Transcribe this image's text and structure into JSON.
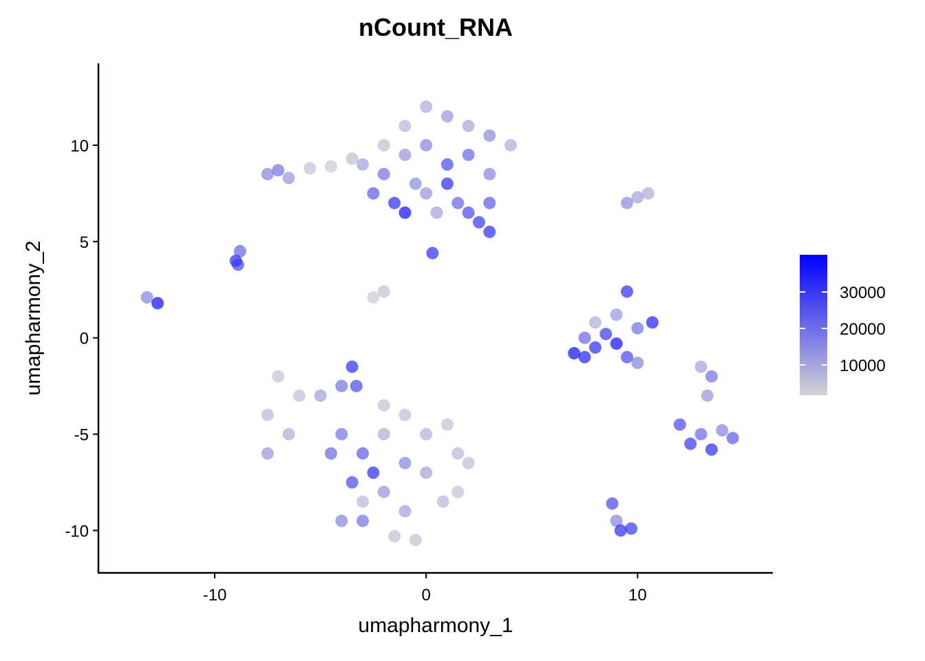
{
  "chart_data": {
    "type": "scatter",
    "title": "nCount_RNA",
    "x_label": "umapharmony_1",
    "y_label": "umapharmony_2",
    "xlim": [
      -15.5,
      16.4
    ],
    "ylim": [
      -12.2,
      14.25
    ],
    "xticks": [
      -10,
      0,
      10
    ],
    "yticks": [
      -10,
      -5,
      0,
      5,
      10
    ],
    "colorbar": {
      "lim": [
        1700,
        40200
      ],
      "ticks": [
        10000,
        20000,
        30000
      ],
      "low_color": "#d3d3d3",
      "high_color": "#0000ff"
    },
    "x": [
      -2,
      -1,
      0,
      1,
      2,
      3,
      4,
      -3,
      -2,
      -1,
      0,
      1,
      2,
      3,
      -2.5,
      -1.5,
      -1,
      0,
      1,
      1.5,
      2,
      2.5,
      3,
      3,
      0.5,
      -0.5,
      0.3,
      -7.5,
      -7,
      -6.5,
      -5.5,
      -4.5,
      -3.5,
      -9,
      -8.9,
      -8.8,
      -13.2,
      -12.7,
      -2.5,
      -2,
      10,
      9.5,
      10.5,
      7,
      7.5,
      8,
      8.5,
      9,
      8,
      9,
      9.5,
      10,
      10.7,
      9.5,
      10,
      7.5,
      13,
      13.5,
      13.3,
      12,
      13,
      14,
      14.5,
      13.5,
      12.5,
      8.8,
      9,
      9.2,
      9.7,
      -7,
      -7.5,
      -7.5,
      -6.5,
      -6,
      -5,
      -4,
      -3.5,
      -3.3,
      -4,
      -3,
      -2.5,
      -2,
      -1,
      0,
      1,
      1.5,
      2,
      1.5,
      0,
      -1,
      -2,
      -3,
      -4,
      -3,
      -1.5,
      -0.5,
      -1,
      -4.5,
      -3.5,
      0.8,
      -2
    ],
    "y": [
      10,
      11,
      12,
      11.5,
      11,
      10.5,
      10,
      9,
      8.5,
      9.5,
      10,
      9,
      9.5,
      8.5,
      7.5,
      7,
      6.5,
      7.5,
      8,
      7,
      6.5,
      6,
      5.5,
      7,
      6.5,
      8,
      4.4,
      8.5,
      8.7,
      8.3,
      8.8,
      8.9,
      9.3,
      4,
      3.8,
      4.5,
      2.1,
      1.8,
      2.1,
      2.4,
      7.3,
      7,
      7.5,
      -0.8,
      0,
      -0.5,
      0.2,
      -0.3,
      0.8,
      1.2,
      2.4,
      0.5,
      0.8,
      -1,
      -1.3,
      -1,
      -1.5,
      -2,
      -3,
      -4.5,
      -5,
      -4.8,
      -5.2,
      -5.8,
      -5.5,
      -8.6,
      -9.5,
      -10,
      -9.9,
      -2,
      -4,
      -6,
      -5,
      -3,
      -3,
      -2.5,
      -1.5,
      -2.5,
      -5,
      -6,
      -7,
      -5,
      -4,
      -5,
      -4.5,
      -6,
      -6.5,
      -8,
      -7,
      -6.5,
      -8,
      -8.5,
      -9.5,
      -9.5,
      -10.3,
      -10.5,
      -9,
      -6,
      -7.5,
      -8.5,
      -3.5
    ],
    "values": [
      5000,
      6000,
      8000,
      12000,
      9000,
      14000,
      8000,
      10000,
      18000,
      12000,
      15000,
      25000,
      20000,
      15000,
      22000,
      30000,
      35000,
      12000,
      30000,
      20000,
      25000,
      28000,
      30000,
      22000,
      10000,
      14000,
      30000,
      15000,
      18000,
      12000,
      4000,
      3000,
      5000,
      30000,
      25000,
      20000,
      15000,
      35000,
      3000,
      4000,
      10000,
      14000,
      8000,
      35000,
      20000,
      30000,
      28000,
      35000,
      8000,
      12000,
      30000,
      18000,
      32000,
      25000,
      15000,
      32000,
      10000,
      18000,
      12000,
      25000,
      20000,
      15000,
      22000,
      30000,
      28000,
      25000,
      15000,
      30000,
      28000,
      4000,
      6000,
      12000,
      8000,
      5000,
      10000,
      18000,
      30000,
      25000,
      18000,
      22000,
      30000,
      8000,
      5000,
      7000,
      4000,
      6000,
      5000,
      4000,
      10000,
      15000,
      12000,
      6000,
      15000,
      18000,
      5000,
      4000,
      10000,
      20000,
      25000,
      6000,
      4000
    ]
  }
}
